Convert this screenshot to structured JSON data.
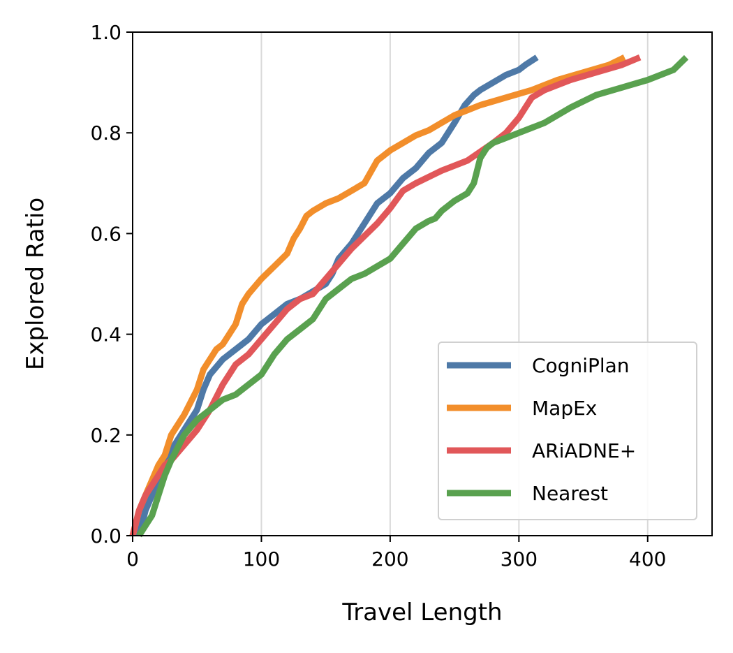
{
  "chart_data": {
    "type": "line",
    "title": "",
    "xlabel": "Travel Length",
    "ylabel": "Explored Ratio",
    "xlim": [
      0,
      450
    ],
    "ylim": [
      0.0,
      1.0
    ],
    "xticks": [
      0,
      100,
      200,
      300,
      400
    ],
    "xtick_labels": [
      "0",
      "100",
      "200",
      "300",
      "400"
    ],
    "yticks": [
      0.0,
      0.2,
      0.4,
      0.6,
      0.8,
      1.0
    ],
    "ytick_labels": [
      "0.0",
      "0.2",
      "0.4",
      "0.6",
      "0.8",
      "1.0"
    ],
    "grid": "vertical gridlines at x ticks",
    "legend_position": "lower right",
    "series": [
      {
        "name": "CogniPlan",
        "color": "#4e79a7",
        "x": [
          5,
          10,
          15,
          20,
          25,
          30,
          40,
          50,
          55,
          60,
          70,
          80,
          90,
          100,
          110,
          120,
          130,
          140,
          150,
          155,
          160,
          170,
          180,
          190,
          200,
          210,
          220,
          230,
          240,
          250,
          258,
          265,
          270,
          280,
          290,
          300,
          305,
          314
        ],
        "y": [
          0.0,
          0.05,
          0.08,
          0.12,
          0.15,
          0.17,
          0.21,
          0.25,
          0.29,
          0.32,
          0.35,
          0.37,
          0.39,
          0.42,
          0.44,
          0.46,
          0.47,
          0.485,
          0.5,
          0.52,
          0.55,
          0.58,
          0.62,
          0.66,
          0.68,
          0.71,
          0.73,
          0.76,
          0.78,
          0.82,
          0.855,
          0.875,
          0.885,
          0.9,
          0.915,
          0.925,
          0.935,
          0.95
        ]
      },
      {
        "name": "MapEx",
        "color": "#f28e2b",
        "x": [
          0,
          5,
          10,
          15,
          20,
          25,
          30,
          40,
          50,
          55,
          60,
          65,
          70,
          80,
          85,
          90,
          100,
          110,
          120,
          125,
          130,
          135,
          140,
          150,
          160,
          170,
          180,
          190,
          200,
          210,
          220,
          230,
          240,
          250,
          260,
          270,
          290,
          310,
          330,
          350,
          370,
          382
        ],
        "y": [
          0.0,
          0.05,
          0.08,
          0.11,
          0.14,
          0.16,
          0.2,
          0.24,
          0.29,
          0.33,
          0.35,
          0.37,
          0.38,
          0.42,
          0.46,
          0.48,
          0.51,
          0.535,
          0.56,
          0.59,
          0.61,
          0.635,
          0.645,
          0.66,
          0.67,
          0.685,
          0.7,
          0.745,
          0.765,
          0.78,
          0.795,
          0.805,
          0.82,
          0.835,
          0.845,
          0.855,
          0.87,
          0.885,
          0.905,
          0.92,
          0.935,
          0.95
        ]
      },
      {
        "name": "ARiADNE+",
        "color": "#e15759",
        "x": [
          0,
          5,
          10,
          15,
          20,
          25,
          30,
          40,
          50,
          60,
          70,
          80,
          90,
          100,
          110,
          120,
          130,
          140,
          150,
          160,
          170,
          180,
          190,
          200,
          210,
          220,
          240,
          260,
          280,
          290,
          300,
          310,
          320,
          340,
          360,
          380,
          394
        ],
        "y": [
          0.0,
          0.05,
          0.08,
          0.1,
          0.12,
          0.14,
          0.15,
          0.18,
          0.21,
          0.25,
          0.3,
          0.34,
          0.36,
          0.39,
          0.42,
          0.45,
          0.47,
          0.48,
          0.51,
          0.54,
          0.57,
          0.595,
          0.62,
          0.65,
          0.685,
          0.7,
          0.725,
          0.745,
          0.78,
          0.8,
          0.83,
          0.87,
          0.885,
          0.905,
          0.92,
          0.935,
          0.95
        ]
      },
      {
        "name": "Nearest",
        "color": "#59a14f",
        "x": [
          5,
          10,
          15,
          20,
          25,
          30,
          40,
          50,
          60,
          70,
          80,
          90,
          100,
          110,
          120,
          130,
          140,
          150,
          160,
          170,
          180,
          190,
          200,
          210,
          220,
          230,
          235,
          240,
          250,
          260,
          265,
          270,
          275,
          280,
          290,
          300,
          320,
          340,
          360,
          380,
          400,
          420,
          430
        ],
        "y": [
          0.0,
          0.02,
          0.04,
          0.08,
          0.12,
          0.15,
          0.2,
          0.23,
          0.25,
          0.27,
          0.28,
          0.3,
          0.32,
          0.36,
          0.39,
          0.41,
          0.43,
          0.47,
          0.49,
          0.51,
          0.52,
          0.535,
          0.55,
          0.58,
          0.61,
          0.625,
          0.63,
          0.645,
          0.665,
          0.68,
          0.7,
          0.75,
          0.77,
          0.78,
          0.79,
          0.8,
          0.82,
          0.85,
          0.875,
          0.89,
          0.905,
          0.925,
          0.95
        ]
      }
    ]
  }
}
